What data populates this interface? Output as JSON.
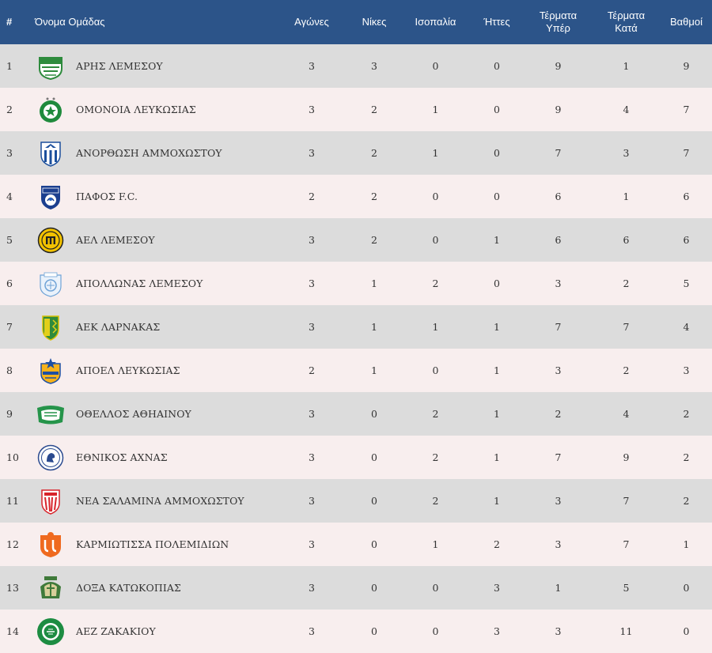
{
  "table": {
    "headers": {
      "rank": "#",
      "team": "Όνομα Ομάδας",
      "played": "Αγώνες",
      "wins": "Νίκες",
      "draws": "Ισοπαλία",
      "losses": "Ήττες",
      "goals_for_line1": "Τέρματα",
      "goals_for_line2": "Υπέρ",
      "goals_against_line1": "Τέρματα",
      "goals_against_line2": "Κατά",
      "points": "Βαθμοί"
    },
    "rows": [
      {
        "rank": "1",
        "team": "ΑΡΗΣ ΛΕΜΕΣΟΥ",
        "logo": "aris-limassol-crest-icon",
        "played": "3",
        "wins": "3",
        "draws": "0",
        "losses": "0",
        "gf": "9",
        "ga": "1",
        "pts": "9"
      },
      {
        "rank": "2",
        "team": "ΟΜΟΝΟΙΑ ΛΕΥΚΩΣΙΑΣ",
        "logo": "omonoia-crest-icon",
        "played": "3",
        "wins": "2",
        "draws": "1",
        "losses": "0",
        "gf": "9",
        "ga": "4",
        "pts": "7"
      },
      {
        "rank": "3",
        "team": "ΑΝΟΡΘΩΣΗ ΑΜΜΟΧΩΣΤΟΥ",
        "logo": "anorthosis-crest-icon",
        "played": "3",
        "wins": "2",
        "draws": "1",
        "losses": "0",
        "gf": "7",
        "ga": "3",
        "pts": "7"
      },
      {
        "rank": "4",
        "team": "ΠΑΦΟΣ F.C.",
        "logo": "pafos-fc-crest-icon",
        "played": "2",
        "wins": "2",
        "draws": "0",
        "losses": "0",
        "gf": "6",
        "ga": "1",
        "pts": "6"
      },
      {
        "rank": "5",
        "team": "ΑΕΛ ΛΕΜΕΣΟΥ",
        "logo": "ael-limassol-crest-icon",
        "played": "3",
        "wins": "2",
        "draws": "0",
        "losses": "1",
        "gf": "6",
        "ga": "6",
        "pts": "6"
      },
      {
        "rank": "6",
        "team": "ΑΠΟΛΛΩΝΑΣ ΛΕΜΕΣΟΥ",
        "logo": "apollon-limassol-crest-icon",
        "played": "3",
        "wins": "1",
        "draws": "2",
        "losses": "0",
        "gf": "3",
        "ga": "2",
        "pts": "5"
      },
      {
        "rank": "7",
        "team": "ΑΕΚ ΛΑΡΝΑΚΑΣ",
        "logo": "aek-larnaca-crest-icon",
        "played": "3",
        "wins": "1",
        "draws": "1",
        "losses": "1",
        "gf": "7",
        "ga": "7",
        "pts": "4"
      },
      {
        "rank": "8",
        "team": "ΑΠΟΕΛ ΛΕΥΚΩΣΙΑΣ",
        "logo": "apoel-crest-icon",
        "played": "2",
        "wins": "1",
        "draws": "0",
        "losses": "1",
        "gf": "3",
        "ga": "2",
        "pts": "3"
      },
      {
        "rank": "9",
        "team": "ΟΘΕΛΛΟΣ ΑΘΗΑΙΝΟΥ",
        "logo": "othellos-athienou-crest-icon",
        "played": "3",
        "wins": "0",
        "draws": "2",
        "losses": "1",
        "gf": "2",
        "ga": "4",
        "pts": "2"
      },
      {
        "rank": "10",
        "team": "ΕΘΝΙΚΟΣ ΑΧΝΑΣ",
        "logo": "ethnikos-achnas-crest-icon",
        "played": "3",
        "wins": "0",
        "draws": "2",
        "losses": "1",
        "gf": "7",
        "ga": "9",
        "pts": "2"
      },
      {
        "rank": "11",
        "team": "ΝΕΑ ΣΑΛΑΜΙΝΑ ΑΜΜΟΧΩΣΤΟΥ",
        "logo": "nea-salamis-crest-icon",
        "played": "3",
        "wins": "0",
        "draws": "2",
        "losses": "1",
        "gf": "3",
        "ga": "7",
        "pts": "2"
      },
      {
        "rank": "12",
        "team": "ΚΑΡΜΙΩΤΙΣΣΑ ΠΟΛΕΜΙΔΙΩΝ",
        "logo": "karmiotissa-crest-icon",
        "played": "3",
        "wins": "0",
        "draws": "1",
        "losses": "2",
        "gf": "3",
        "ga": "7",
        "pts": "1"
      },
      {
        "rank": "13",
        "team": "ΔΟΞΑ ΚΑΤΩΚΟΠΙΑΣ",
        "logo": "doxa-katokopias-crest-icon",
        "played": "3",
        "wins": "0",
        "draws": "0",
        "losses": "3",
        "gf": "1",
        "ga": "5",
        "pts": "0"
      },
      {
        "rank": "14",
        "team": "ΑΕΖ ΖΑΚΑΚΙΟΥ",
        "logo": "aez-zakakiou-crest-icon",
        "played": "3",
        "wins": "0",
        "draws": "0",
        "losses": "3",
        "gf": "3",
        "ga": "11",
        "pts": "0"
      }
    ]
  },
  "colors": {
    "header_bg": "#2c5489",
    "row_odd": "#dcdcdc",
    "row_even": "#f8eeee"
  }
}
